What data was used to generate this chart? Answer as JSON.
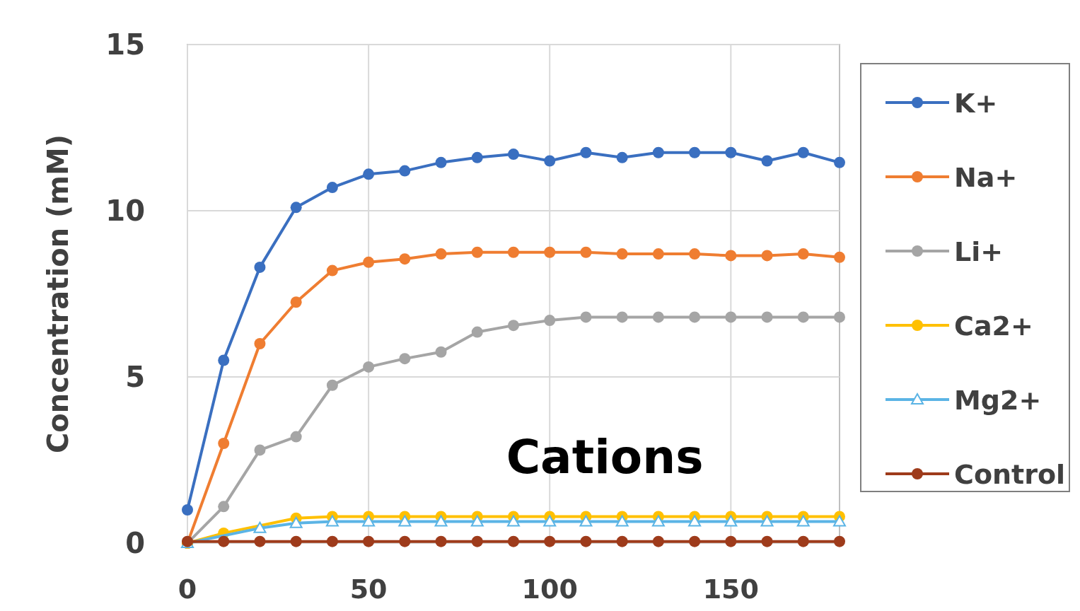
{
  "chart_data": {
    "type": "line",
    "ylabel": "Concentration (mM)",
    "annotations": [
      "Cations"
    ],
    "x": [
      0,
      10,
      20,
      30,
      40,
      50,
      60,
      70,
      80,
      90,
      100,
      110,
      120,
      130,
      140,
      150,
      160,
      170,
      180
    ],
    "xlim": [
      0,
      180
    ],
    "xticks": [
      0,
      50,
      100,
      150
    ],
    "ylim": [
      0,
      15
    ],
    "yticks": [
      0,
      5,
      10,
      15
    ],
    "grid": true,
    "legend": "right",
    "marker": "circle",
    "series": [
      {
        "name": "K+",
        "color": "#3a6fc0",
        "values": [
          1.0,
          5.5,
          8.3,
          10.1,
          10.7,
          11.1,
          11.2,
          11.45,
          11.6,
          11.7,
          11.5,
          11.75,
          11.6,
          11.75,
          11.75,
          11.75,
          11.5,
          11.75,
          11.45
        ]
      },
      {
        "name": "Na+",
        "color": "#ef7d31",
        "values": [
          0,
          3.0,
          6.0,
          7.25,
          8.2,
          8.45,
          8.55,
          8.7,
          8.75,
          8.75,
          8.75,
          8.75,
          8.7,
          8.7,
          8.7,
          8.65,
          8.65,
          8.7,
          8.6
        ]
      },
      {
        "name": "Li+",
        "color": "#a5a5a5",
        "values": [
          0,
          1.1,
          2.8,
          3.2,
          4.75,
          5.3,
          5.55,
          5.75,
          6.35,
          6.55,
          6.7,
          6.8,
          6.8,
          6.8,
          6.8,
          6.8,
          6.8,
          6.8,
          6.8
        ]
      },
      {
        "name": "Ca2+",
        "color": "#ffc000",
        "values": [
          0,
          0.3,
          null,
          0.75,
          0.8,
          0.8,
          0.8,
          0.8,
          0.8,
          0.8,
          0.8,
          0.8,
          0.8,
          0.8,
          0.8,
          0.8,
          0.8,
          0.8,
          0.8
        ]
      },
      {
        "name": "Mg2+",
        "color": "#5bb4e5",
        "marker": "triangle",
        "values": [
          0,
          null,
          0.45,
          0.6,
          0.65,
          0.65,
          0.65,
          0.65,
          0.65,
          0.65,
          0.65,
          0.65,
          0.65,
          0.65,
          0.65,
          0.65,
          0.65,
          0.65,
          0.65
        ]
      },
      {
        "name": "Control",
        "color": "#9e3b1b",
        "values": [
          0.05,
          0.05,
          0.05,
          0.05,
          0.05,
          0.05,
          0.05,
          0.05,
          0.05,
          0.05,
          0.05,
          0.05,
          0.05,
          0.05,
          0.05,
          0.05,
          0.05,
          0.05,
          0.05
        ]
      }
    ]
  }
}
